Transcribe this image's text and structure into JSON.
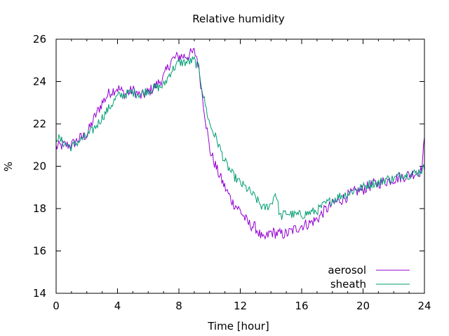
{
  "chart_data": {
    "type": "line",
    "title": "Relative humidity",
    "xlabel": "Time [hour]",
    "ylabel": "%",
    "xlim": [
      0,
      24
    ],
    "ylim": [
      14,
      26
    ],
    "xticks": [
      0,
      4,
      8,
      12,
      16,
      20,
      24
    ],
    "yticks": [
      14,
      16,
      18,
      20,
      22,
      24,
      26
    ],
    "grid": false,
    "legend_position": "bottom-right",
    "series": [
      {
        "name": "aerosol",
        "color": "#9400d3",
        "points": [
          [
            0,
            20.9
          ],
          [
            0.5,
            21.0
          ],
          [
            1,
            21.0
          ],
          [
            1.5,
            21.3
          ],
          [
            2,
            21.5
          ],
          [
            2.5,
            22.3
          ],
          [
            3,
            23.0
          ],
          [
            3.5,
            23.5
          ],
          [
            4,
            23.7
          ],
          [
            4.5,
            23.4
          ],
          [
            5,
            23.6
          ],
          [
            5.5,
            23.3
          ],
          [
            6,
            23.5
          ],
          [
            6.5,
            23.8
          ],
          [
            7,
            24.2
          ],
          [
            7.5,
            25.0
          ],
          [
            8,
            25.2
          ],
          [
            8.5,
            25.2
          ],
          [
            9,
            25.4
          ],
          [
            9.2,
            25.1
          ],
          [
            9.5,
            23.5
          ],
          [
            10,
            20.8
          ],
          [
            10.5,
            19.8
          ],
          [
            11,
            19.0
          ],
          [
            11.5,
            18.3
          ],
          [
            12,
            17.9
          ],
          [
            12.5,
            17.3
          ],
          [
            13,
            17.1
          ],
          [
            13.5,
            16.5
          ],
          [
            14,
            16.9
          ],
          [
            14.5,
            16.8
          ],
          [
            15,
            16.8
          ],
          [
            15.5,
            17.0
          ],
          [
            16,
            17.2
          ],
          [
            16.5,
            17.3
          ],
          [
            17,
            17.5
          ],
          [
            17.5,
            17.9
          ],
          [
            18,
            18.2
          ],
          [
            18.5,
            18.4
          ],
          [
            19,
            18.6
          ],
          [
            19.5,
            18.8
          ],
          [
            20,
            18.9
          ],
          [
            20.5,
            19.1
          ],
          [
            21,
            19.2
          ],
          [
            21.5,
            19.3
          ],
          [
            22,
            19.4
          ],
          [
            22.5,
            19.5
          ],
          [
            23,
            19.6
          ],
          [
            23.5,
            19.7
          ],
          [
            23.8,
            19.8
          ],
          [
            24,
            21.2
          ]
        ]
      },
      {
        "name": "sheath",
        "color": "#009e73",
        "points": [
          [
            0,
            21.4
          ],
          [
            0.5,
            21.1
          ],
          [
            1,
            20.9
          ],
          [
            1.5,
            21.2
          ],
          [
            2,
            21.4
          ],
          [
            2.5,
            21.8
          ],
          [
            3,
            22.3
          ],
          [
            3.5,
            22.8
          ],
          [
            4,
            23.3
          ],
          [
            4.5,
            23.4
          ],
          [
            5,
            23.5
          ],
          [
            5.5,
            23.4
          ],
          [
            6,
            23.6
          ],
          [
            6.5,
            23.7
          ],
          [
            7,
            23.8
          ],
          [
            7.5,
            24.5
          ],
          [
            8,
            24.9
          ],
          [
            8.5,
            24.9
          ],
          [
            9,
            25.0
          ],
          [
            9.3,
            24.6
          ],
          [
            9.6,
            23.3
          ],
          [
            10,
            22.0
          ],
          [
            10.5,
            21.2
          ],
          [
            11,
            20.2
          ],
          [
            11.5,
            19.6
          ],
          [
            12,
            19.2
          ],
          [
            12.5,
            18.9
          ],
          [
            13,
            18.5
          ],
          [
            13.5,
            18.0
          ],
          [
            14,
            18.2
          ],
          [
            14.3,
            18.8
          ],
          [
            14.6,
            17.6
          ],
          [
            15,
            17.8
          ],
          [
            15.5,
            17.7
          ],
          [
            16,
            17.7
          ],
          [
            16.5,
            17.8
          ],
          [
            17,
            17.9
          ],
          [
            17.5,
            18.2
          ],
          [
            18,
            18.4
          ],
          [
            18.5,
            18.6
          ],
          [
            19,
            18.7
          ],
          [
            19.5,
            18.9
          ],
          [
            20,
            19.0
          ],
          [
            20.5,
            19.2
          ],
          [
            21,
            19.2
          ],
          [
            21.5,
            19.4
          ],
          [
            22,
            19.4
          ],
          [
            22.5,
            19.6
          ],
          [
            23,
            19.6
          ],
          [
            23.5,
            19.7
          ],
          [
            24,
            19.9
          ]
        ]
      }
    ]
  }
}
